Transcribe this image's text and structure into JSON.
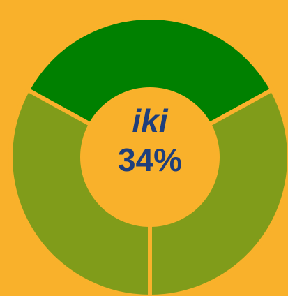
{
  "chart_data": {
    "type": "donut",
    "categories": [
      null,
      "iki",
      null
    ],
    "values": [
      33,
      34,
      33
    ],
    "value_labels": [
      null,
      "34%",
      null
    ],
    "colors": [
      "#809c1a",
      "#008000",
      "#809c1a"
    ]
  }
}
